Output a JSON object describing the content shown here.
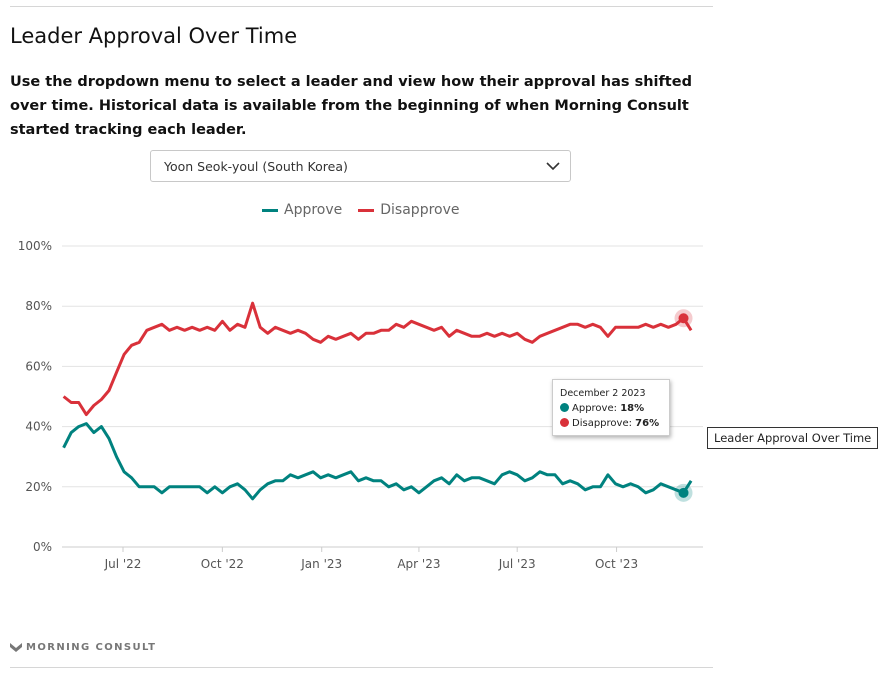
{
  "title": "Leader Approval Over Time",
  "description": "Use the dropdown menu to select a leader and view how their approval has shifted over time. Historical data is available from the beginning of when Morning Consult started tracking each leader.",
  "dropdown": {
    "selected": "Yoon Seok-youl (South Korea)",
    "icon": "chevron-down-icon"
  },
  "tooltip": {
    "date": "December 2 2023",
    "approve_label": "Approve:",
    "approve_value": "18%",
    "disapprove_label": "Disapprove:",
    "disapprove_value": "76%"
  },
  "floating_tooltip": "Leader Approval Over Time",
  "brand": "MORNING CONSULT",
  "colors": {
    "approve": "#00827f",
    "disapprove": "#d9313a"
  },
  "chart_data": {
    "type": "line",
    "legend": "top",
    "grid": true,
    "ylim": [
      0,
      100
    ],
    "yticks": [
      0,
      20,
      40,
      60,
      80,
      100
    ],
    "ytick_labels": [
      "0%",
      "20%",
      "40%",
      "60%",
      "80%",
      "100%"
    ],
    "xticks": [
      "2022-07-01",
      "2022-10-01",
      "2023-01-01",
      "2023-04-01",
      "2023-07-01",
      "2023-10-01"
    ],
    "xtick_labels": [
      "Jul '22",
      "Oct '22",
      "Jan '23",
      "Apr '23",
      "Jul '23",
      "Oct '23"
    ],
    "highlight_date": "2023-12-02",
    "x": [
      "2022-05-07",
      "2022-05-14",
      "2022-05-21",
      "2022-05-28",
      "2022-06-04",
      "2022-06-11",
      "2022-06-18",
      "2022-06-25",
      "2022-07-02",
      "2022-07-09",
      "2022-07-16",
      "2022-07-23",
      "2022-07-30",
      "2022-08-06",
      "2022-08-13",
      "2022-08-20",
      "2022-08-27",
      "2022-09-03",
      "2022-09-10",
      "2022-09-17",
      "2022-09-24",
      "2022-10-01",
      "2022-10-08",
      "2022-10-15",
      "2022-10-22",
      "2022-10-29",
      "2022-11-05",
      "2022-11-12",
      "2022-11-19",
      "2022-11-26",
      "2022-12-03",
      "2022-12-10",
      "2022-12-17",
      "2022-12-24",
      "2022-12-31",
      "2023-01-07",
      "2023-01-14",
      "2023-01-21",
      "2023-01-28",
      "2023-02-04",
      "2023-02-11",
      "2023-02-18",
      "2023-02-25",
      "2023-03-04",
      "2023-03-11",
      "2023-03-18",
      "2023-03-25",
      "2023-04-01",
      "2023-04-08",
      "2023-04-15",
      "2023-04-22",
      "2023-04-29",
      "2023-05-06",
      "2023-05-13",
      "2023-05-20",
      "2023-05-27",
      "2023-06-03",
      "2023-06-10",
      "2023-06-17",
      "2023-06-24",
      "2023-07-01",
      "2023-07-08",
      "2023-07-15",
      "2023-07-22",
      "2023-07-29",
      "2023-08-05",
      "2023-08-12",
      "2023-08-19",
      "2023-08-26",
      "2023-09-02",
      "2023-09-09",
      "2023-09-16",
      "2023-09-23",
      "2023-09-30",
      "2023-10-07",
      "2023-10-14",
      "2023-10-21",
      "2023-10-28",
      "2023-11-04",
      "2023-11-11",
      "2023-11-18",
      "2023-11-25",
      "2023-12-02",
      "2023-12-09"
    ],
    "series": [
      {
        "name": "Approve",
        "values": [
          33,
          38,
          40,
          41,
          38,
          40,
          36,
          30,
          25,
          23,
          20,
          20,
          20,
          18,
          20,
          20,
          20,
          20,
          20,
          18,
          20,
          18,
          20,
          21,
          19,
          16,
          19,
          21,
          22,
          22,
          24,
          23,
          24,
          25,
          23,
          24,
          23,
          24,
          25,
          22,
          23,
          22,
          22,
          20,
          21,
          19,
          20,
          18,
          20,
          22,
          23,
          21,
          24,
          22,
          23,
          23,
          22,
          21,
          24,
          25,
          24,
          22,
          23,
          25,
          24,
          24,
          21,
          22,
          21,
          19,
          20,
          20,
          24,
          21,
          20,
          21,
          20,
          18,
          19,
          21,
          20,
          19,
          18,
          22
        ]
      },
      {
        "name": "Disapprove",
        "values": [
          50,
          48,
          48,
          44,
          47,
          49,
          52,
          58,
          64,
          67,
          68,
          72,
          73,
          74,
          72,
          73,
          72,
          73,
          72,
          73,
          72,
          75,
          72,
          74,
          73,
          81,
          73,
          71,
          73,
          72,
          71,
          72,
          71,
          69,
          68,
          70,
          69,
          70,
          71,
          69,
          71,
          71,
          72,
          72,
          74,
          73,
          75,
          74,
          73,
          72,
          73,
          70,
          72,
          71,
          70,
          70,
          71,
          70,
          71,
          70,
          71,
          69,
          68,
          70,
          71,
          72,
          73,
          74,
          74,
          73,
          74,
          73,
          70,
          73,
          73,
          73,
          73,
          74,
          73,
          74,
          73,
          74,
          76,
          72
        ]
      }
    ]
  }
}
